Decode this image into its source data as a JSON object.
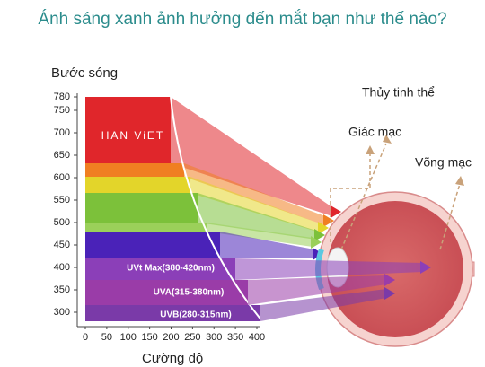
{
  "header": {
    "title": "Ánh sáng xanh ảnh hưởng đến mắt bạn như thế nào?"
  },
  "axes": {
    "y": {
      "label": "Bước sóng",
      "ticks": [
        780,
        750,
        700,
        650,
        600,
        550,
        500,
        450,
        400,
        350,
        300
      ]
    },
    "x": {
      "label": "Cường độ",
      "ticks": [
        0,
        50,
        100,
        150,
        200,
        250,
        300,
        350,
        400
      ]
    }
  },
  "watermark": "HAN ViET",
  "bands": [
    "UVt Max(380-420nm)",
    "UVA(315-380nm)",
    "UVB(280-315nm)"
  ],
  "eye_labels": [
    "Thủy tinh thể",
    "Giác mạc",
    "Võng mạc"
  ]
}
